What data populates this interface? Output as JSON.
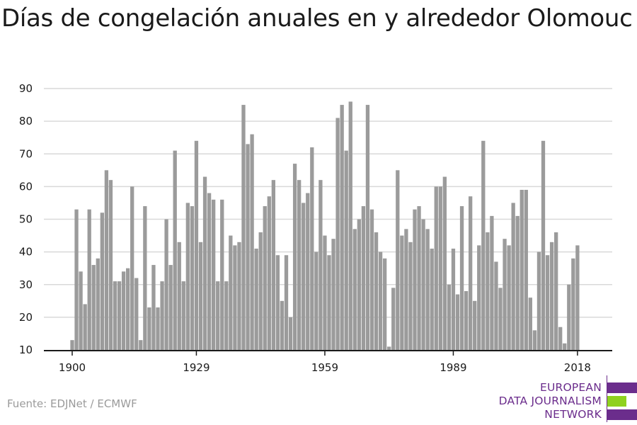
{
  "title": "Días de congelación anuales en y alrededor Olomouc",
  "source": "Fuente: EDJNet / ECMWF",
  "logo": {
    "lines": [
      "EUROPEAN",
      "DATA JOURNALISM",
      "NETWORK"
    ],
    "colors": {
      "purple": "#6b2d8c",
      "green": "#8fd11f"
    }
  },
  "colors": {
    "bar": "#9b9b9b",
    "grid": "#d9d9d9",
    "axis": "#1a1a1a",
    "text": "#1a1a1a"
  },
  "chart_data": {
    "type": "bar",
    "title": "Días de congelación anuales en y alrededor Olomouc",
    "xlabel": "",
    "ylabel": "",
    "x_start": 1900,
    "x": [
      1900,
      1901,
      1902,
      1903,
      1904,
      1905,
      1906,
      1907,
      1908,
      1909,
      1910,
      1911,
      1912,
      1913,
      1914,
      1915,
      1916,
      1917,
      1918,
      1919,
      1920,
      1921,
      1922,
      1923,
      1924,
      1925,
      1926,
      1927,
      1928,
      1929,
      1930,
      1931,
      1932,
      1933,
      1934,
      1935,
      1936,
      1937,
      1938,
      1939,
      1940,
      1941,
      1942,
      1943,
      1944,
      1945,
      1946,
      1947,
      1948,
      1949,
      1950,
      1951,
      1952,
      1953,
      1954,
      1955,
      1956,
      1957,
      1958,
      1959,
      1960,
      1961,
      1962,
      1963,
      1964,
      1965,
      1966,
      1967,
      1968,
      1969,
      1970,
      1971,
      1972,
      1973,
      1974,
      1975,
      1976,
      1977,
      1978,
      1979,
      1980,
      1981,
      1982,
      1983,
      1984,
      1985,
      1986,
      1987,
      1988,
      1989,
      1990,
      1991,
      1992,
      1993,
      1994,
      1995,
      1996,
      1997,
      1998,
      1999,
      2000,
      2001,
      2002,
      2003,
      2004,
      2005,
      2006,
      2007,
      2008,
      2009,
      2010,
      2011,
      2012,
      2013,
      2014,
      2015,
      2016,
      2017,
      2018
    ],
    "values": [
      13,
      53,
      34,
      24,
      53,
      36,
      38,
      52,
      65,
      62,
      31,
      31,
      34,
      35,
      60,
      32,
      13,
      54,
      23,
      36,
      23,
      31,
      50,
      36,
      71,
      43,
      31,
      55,
      54,
      74,
      43,
      63,
      58,
      56,
      31,
      56,
      31,
      45,
      42,
      43,
      85,
      73,
      76,
      41,
      46,
      54,
      57,
      62,
      39,
      25,
      39,
      20,
      67,
      62,
      55,
      58,
      72,
      40,
      62,
      45,
      39,
      44,
      81,
      85,
      71,
      86,
      47,
      50,
      54,
      85,
      53,
      46,
      40,
      38,
      11,
      29,
      65,
      45,
      47,
      43,
      53,
      54,
      50,
      47,
      41,
      60,
      60,
      63,
      30,
      41,
      27,
      54,
      28,
      57,
      25,
      42,
      74,
      46,
      51,
      37,
      29,
      44,
      42,
      55,
      51,
      59,
      59,
      26,
      16,
      40,
      74,
      39,
      43,
      46,
      17,
      12,
      30,
      38,
      42
    ],
    "x_ticks": [
      "1900",
      "1929",
      "1959",
      "1989",
      "2018"
    ],
    "y_ticks": [
      10,
      20,
      30,
      40,
      50,
      60,
      70,
      80,
      90
    ],
    "ylim": [
      10,
      90
    ],
    "grid": true,
    "legend": "none"
  }
}
